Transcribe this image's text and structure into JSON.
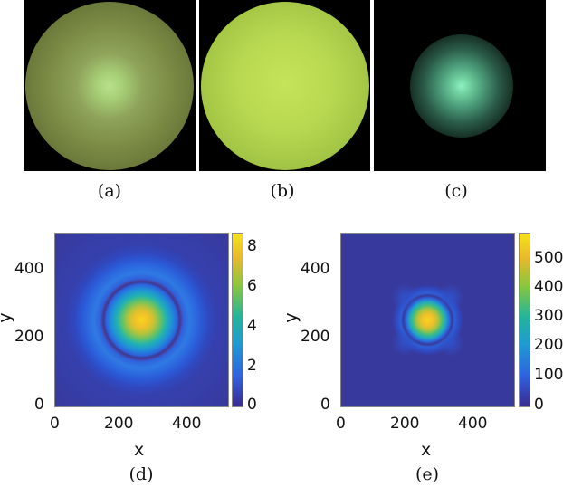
{
  "panels_top": [
    {
      "caption": "(a)"
    },
    {
      "caption": "(b)"
    },
    {
      "caption": "(c)"
    }
  ],
  "plot_d": {
    "caption": "(d)",
    "xlabel": "x",
    "ylabel": "y",
    "xticks": [
      "0",
      "200",
      "400"
    ],
    "yticks": [
      "0",
      "200",
      "400"
    ],
    "cbar_ticks": [
      "0",
      "2",
      "4",
      "6",
      "8"
    ]
  },
  "plot_e": {
    "caption": "(e)",
    "xlabel": "x",
    "ylabel": "y",
    "xticks": [
      "0",
      "200",
      "400"
    ],
    "yticks": [
      "0",
      "200",
      "400"
    ],
    "cbar_ticks": [
      "0",
      "100",
      "200",
      "300",
      "400",
      "500"
    ]
  },
  "chart_data": [
    {
      "type": "heatmap",
      "title": "",
      "xlabel": "x",
      "ylabel": "y",
      "xlim": [
        0,
        512
      ],
      "ylim": [
        0,
        512
      ],
      "clim": [
        0,
        8.7
      ],
      "peak": {
        "x": 256,
        "y": 256,
        "value": 8.7
      }
    },
    {
      "type": "heatmap",
      "title": "",
      "xlabel": "x",
      "ylabel": "y",
      "xlim": [
        0,
        512
      ],
      "ylim": [
        0,
        512
      ],
      "clim": [
        0,
        560
      ],
      "peak": {
        "x": 256,
        "y": 256,
        "value": 560
      }
    }
  ]
}
